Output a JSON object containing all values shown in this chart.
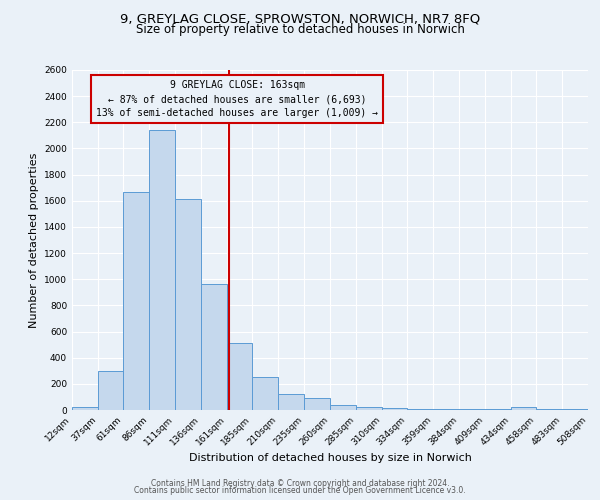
{
  "title": "9, GREYLAG CLOSE, SPROWSTON, NORWICH, NR7 8FQ",
  "subtitle": "Size of property relative to detached houses in Norwich",
  "xlabel": "Distribution of detached houses by size in Norwich",
  "ylabel": "Number of detached properties",
  "bin_edges": [
    12,
    37,
    61,
    86,
    111,
    136,
    161,
    185,
    210,
    235,
    260,
    285,
    310,
    334,
    359,
    384,
    409,
    434,
    458,
    483,
    508
  ],
  "bar_heights": [
    25,
    300,
    1670,
    2140,
    1610,
    960,
    510,
    250,
    120,
    95,
    40,
    25,
    15,
    10,
    10,
    10,
    10,
    25,
    10,
    10
  ],
  "bar_color": "#c5d8ed",
  "bar_edge_color": "#5b9bd5",
  "vline_x": 163,
  "vline_color": "#cc0000",
  "annotation_title": "9 GREYLAG CLOSE: 163sqm",
  "annotation_line1": "← 87% of detached houses are smaller (6,693)",
  "annotation_line2": "13% of semi-detached houses are larger (1,009) →",
  "annotation_box_edge_color": "#cc0000",
  "ylim": [
    0,
    2600
  ],
  "yticks": [
    0,
    200,
    400,
    600,
    800,
    1000,
    1200,
    1400,
    1600,
    1800,
    2000,
    2200,
    2400,
    2600
  ],
  "xtick_labels": [
    "12sqm",
    "37sqm",
    "61sqm",
    "86sqm",
    "111sqm",
    "136sqm",
    "161sqm",
    "185sqm",
    "210sqm",
    "235sqm",
    "260sqm",
    "285sqm",
    "310sqm",
    "334sqm",
    "359sqm",
    "384sqm",
    "409sqm",
    "434sqm",
    "458sqm",
    "483sqm",
    "508sqm"
  ],
  "footer_line1": "Contains HM Land Registry data © Crown copyright and database right 2024.",
  "footer_line2": "Contains public sector information licensed under the Open Government Licence v3.0.",
  "bg_color": "#eaf1f8",
  "grid_color": "#ffffff",
  "title_fontsize": 9.5,
  "subtitle_fontsize": 8.5,
  "tick_fontsize": 6.5,
  "label_fontsize": 8,
  "footer_fontsize": 5.5,
  "annotation_fontsize": 7
}
